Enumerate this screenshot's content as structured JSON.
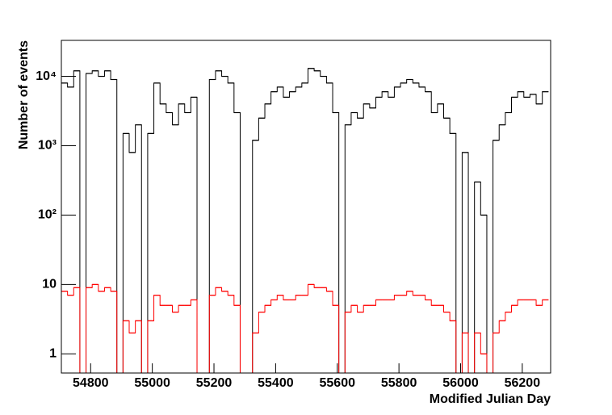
{
  "chart_data": {
    "type": "histogram",
    "xlabel": "Modified Julian Day",
    "ylabel": "Number of events",
    "yscale": "log",
    "xlim": [
      54705,
      56292
    ],
    "ylim": [
      0.53,
      33000
    ],
    "xticks": [
      54800,
      55000,
      55200,
      55400,
      55600,
      55800,
      56000,
      56200
    ],
    "yticks": [
      1,
      10,
      {
        "value": 100,
        "label": "10²"
      },
      {
        "value": 1000,
        "label": "10³"
      },
      {
        "value": 10000,
        "label": "10⁴"
      }
    ],
    "bins": [
      54705,
      54725,
      54745,
      54765,
      54785,
      54805,
      54825,
      54845,
      54865,
      54885,
      54905,
      54925,
      54945,
      54965,
      54985,
      55005,
      55025,
      55045,
      55065,
      55085,
      55105,
      55125,
      55145,
      55165,
      55185,
      55205,
      55225,
      55245,
      55265,
      55285,
      55305,
      55325,
      55345,
      55365,
      55385,
      55405,
      55425,
      55445,
      55465,
      55485,
      55505,
      55525,
      55545,
      55565,
      55585,
      55605,
      55625,
      55645,
      55665,
      55685,
      55705,
      55725,
      55745,
      55765,
      55785,
      55805,
      55825,
      55845,
      55865,
      55885,
      55905,
      55925,
      55945,
      55965,
      55985,
      56005,
      56025,
      56045,
      56065,
      56085,
      56105,
      56125,
      56145,
      56165,
      56185,
      56205,
      56225,
      56245,
      56265,
      56285
    ],
    "series": [
      {
        "color": "#000000",
        "values": [
          8000,
          7000,
          12000,
          0,
          11000,
          12000,
          10000,
          12000,
          9000,
          0,
          1500,
          800,
          2000,
          0,
          1500,
          8000,
          4000,
          3000,
          2000,
          4000,
          3000,
          5000,
          0,
          0,
          9000,
          12000,
          10000,
          8000,
          3000,
          0,
          0,
          1200,
          2500,
          4000,
          6000,
          7000,
          5000,
          6000,
          7000,
          8000,
          13000,
          12000,
          10000,
          8000,
          3000,
          0,
          2000,
          3000,
          2500,
          4000,
          3500,
          5000,
          6000,
          5000,
          7000,
          8000,
          9000,
          8000,
          7000,
          6000,
          3000,
          4000,
          2500,
          1500,
          0,
          800,
          0,
          300,
          100,
          0,
          1200,
          2000,
          3000,
          5000,
          6000,
          5000,
          5500,
          4000,
          6000
        ]
      },
      {
        "color": "#ff0000",
        "values": [
          8,
          7,
          9,
          0,
          9,
          10,
          8,
          9,
          8,
          0,
          3,
          2,
          3,
          0,
          3,
          7,
          5,
          5,
          4,
          5,
          5,
          6,
          0,
          0,
          7,
          9,
          8,
          7,
          5,
          0,
          0,
          2,
          4,
          5,
          6,
          7,
          6,
          6,
          7,
          7,
          10,
          9,
          9,
          8,
          5,
          0,
          4,
          5,
          4,
          5,
          5,
          6,
          6,
          6,
          7,
          7,
          8,
          7,
          7,
          6,
          5,
          5,
          4,
          3,
          0,
          2,
          0,
          2,
          1,
          0,
          2,
          3,
          4,
          5,
          6,
          6,
          6,
          5,
          6
        ]
      }
    ]
  }
}
